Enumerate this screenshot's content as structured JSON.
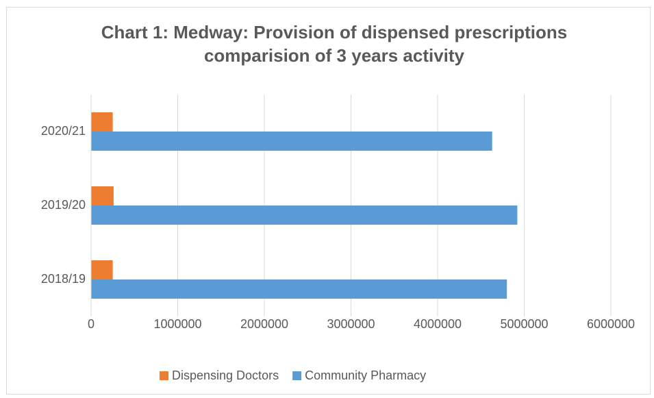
{
  "chart_data": {
    "type": "bar",
    "orientation": "horizontal",
    "title": "Chart 1: Medway: Provision of dispensed prescriptions comparision of 3 years activity",
    "categories": [
      "2018/19",
      "2019/20",
      "2020/21"
    ],
    "series": [
      {
        "name": "Dispensing Doctors",
        "color": "#ed7d31",
        "values": [
          250000,
          260000,
          250000
        ]
      },
      {
        "name": "Community Pharmacy",
        "color": "#5b9bd5",
        "values": [
          4800000,
          4920000,
          4630000
        ]
      }
    ],
    "xlim": [
      0,
      6000000
    ],
    "xticks": [
      0,
      1000000,
      2000000,
      3000000,
      4000000,
      5000000,
      6000000
    ],
    "grid": true,
    "legend": "bottom"
  }
}
